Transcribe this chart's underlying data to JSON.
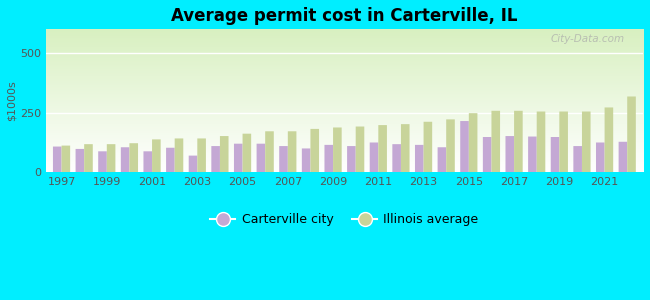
{
  "title": "Average permit cost in Carterville, IL",
  "ylabel": "$1000s",
  "background_outer": "#00eeff",
  "years": [
    1997,
    1998,
    1999,
    2000,
    2001,
    2002,
    2003,
    2004,
    2005,
    2006,
    2007,
    2008,
    2009,
    2010,
    2011,
    2012,
    2013,
    2014,
    2015,
    2016,
    2017,
    2018,
    2019,
    2020,
    2021,
    2022
  ],
  "carterville": [
    108,
    98,
    88,
    105,
    88,
    103,
    70,
    110,
    120,
    120,
    110,
    100,
    115,
    110,
    125,
    118,
    115,
    105,
    215,
    148,
    152,
    150,
    148,
    110,
    125,
    128
  ],
  "illinois": [
    112,
    118,
    118,
    122,
    138,
    142,
    142,
    152,
    162,
    172,
    172,
    182,
    188,
    192,
    198,
    202,
    212,
    222,
    248,
    258,
    258,
    255,
    255,
    255,
    272,
    318
  ],
  "carterville_color": "#c4a8d4",
  "illinois_color": "#c8d49a",
  "ylim": [
    0,
    600
  ],
  "yticks": [
    0,
    250,
    500
  ],
  "bar_width": 0.38,
  "title_fontsize": 12,
  "legend_fontsize": 9,
  "tick_fontsize": 8,
  "ylabel_fontsize": 8,
  "watermark": "City-Data.com"
}
